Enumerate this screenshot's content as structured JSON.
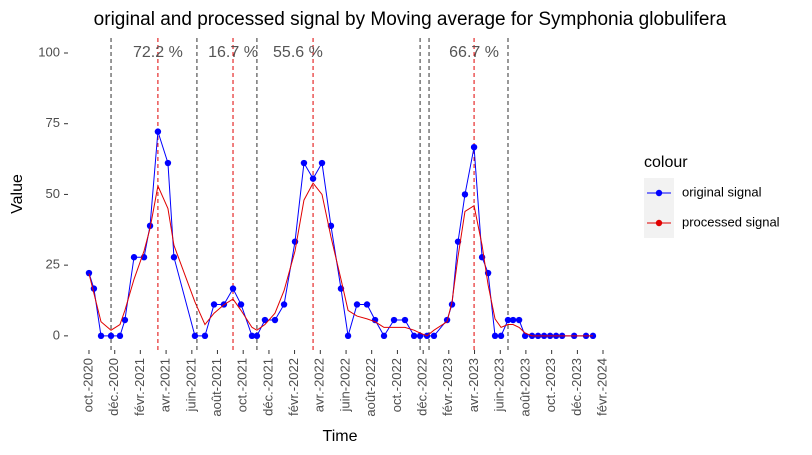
{
  "chart_data": {
    "type": "line",
    "title": "original and processed signal by Moving average for Symphonia globulifera",
    "x_label": "Time",
    "y_label": "Value",
    "legend_title": "colour",
    "x": [
      2020.75,
      2020.782,
      2020.828,
      2020.893,
      2020.951,
      2020.983,
      2021.042,
      2021.107,
      2021.146,
      2021.197,
      2021.262,
      2021.301,
      2021.437,
      2021.502,
      2021.561,
      2021.625,
      2021.684,
      2021.736,
      2021.807,
      2021.839,
      2021.891,
      2021.956,
      2022.015,
      2022.086,
      2022.144,
      2022.203,
      2022.261,
      2022.319,
      2022.384,
      2022.43,
      2022.488,
      2022.553,
      2022.605,
      2022.663,
      2022.728,
      2022.799,
      2022.858,
      2022.897,
      2022.942,
      2022.987,
      2023.072,
      2023.104,
      2023.143,
      2023.188,
      2023.247,
      2023.299,
      2023.338,
      2023.383,
      2023.422,
      2023.467,
      2023.5,
      2023.539,
      2023.578,
      2023.623,
      2023.662,
      2023.701,
      2023.74,
      2023.779,
      2023.818,
      2023.896,
      2023.973,
      2024.018
    ],
    "series": [
      {
        "name": "original signal",
        "color": "#0000ff",
        "markers": true,
        "values": [
          22.2,
          16.7,
          0,
          0,
          0,
          5.6,
          27.8,
          27.8,
          38.9,
          72.2,
          61.1,
          27.8,
          0,
          0,
          11.1,
          11.1,
          16.7,
          11.1,
          0,
          0,
          5.6,
          5.6,
          11.1,
          33.3,
          61.1,
          55.6,
          61.1,
          38.9,
          16.7,
          0,
          11.1,
          11.1,
          5.6,
          0,
          5.6,
          5.6,
          0,
          0,
          0,
          0,
          5.6,
          11.1,
          33.3,
          50,
          66.7,
          27.8,
          22.2,
          0,
          0,
          5.6,
          5.6,
          5.6,
          0,
          0,
          0,
          0,
          0,
          0,
          0,
          0,
          0,
          0
        ]
      },
      {
        "name": "processed signal",
        "color": "#e00000",
        "markers": false,
        "values": [
          22,
          15,
          5,
          2,
          4,
          9,
          20,
          30,
          38,
          53,
          45,
          32,
          12,
          4,
          8,
          11,
          13,
          9,
          3,
          2,
          4,
          8,
          16,
          30,
          48,
          54,
          50,
          35,
          20,
          9,
          7,
          6,
          5,
          3,
          3,
          3,
          2,
          1,
          0,
          2,
          5,
          12,
          28,
          44,
          46,
          32,
          18,
          6,
          3,
          4,
          4,
          3,
          1,
          0,
          0,
          0,
          0,
          0,
          0,
          0,
          0,
          0
        ]
      }
    ],
    "xlim": [
      2020.614,
      2024.096
    ],
    "ylim": [
      -5,
      105.3
    ],
    "yticks": [
      0,
      25,
      50,
      75,
      100
    ],
    "xticks": [
      {
        "value": 2020.75,
        "label": "oct.-2020"
      },
      {
        "value": 2020.917,
        "label": "déc.-2020"
      },
      {
        "value": 2021.083,
        "label": "févr.-2021"
      },
      {
        "value": 2021.25,
        "label": "avr.-2021"
      },
      {
        "value": 2021.417,
        "label": "juin-2021"
      },
      {
        "value": 2021.583,
        "label": "août-2021"
      },
      {
        "value": 2021.75,
        "label": "oct.-2021"
      },
      {
        "value": 2021.917,
        "label": "déc.-2021"
      },
      {
        "value": 2022.083,
        "label": "févr.-2022"
      },
      {
        "value": 2022.25,
        "label": "avr.-2022"
      },
      {
        "value": 2022.417,
        "label": "juin-2022"
      },
      {
        "value": 2022.583,
        "label": "août-2022"
      },
      {
        "value": 2022.75,
        "label": "oct.-2022"
      },
      {
        "value": 2022.917,
        "label": "déc.-2022"
      },
      {
        "value": 2023.083,
        "label": "févr.-2023"
      },
      {
        "value": 2023.25,
        "label": "avr.-2023"
      },
      {
        "value": 2023.417,
        "label": "juin-2023"
      },
      {
        "value": 2023.583,
        "label": "août-2023"
      },
      {
        "value": 2023.75,
        "label": "oct.-2023"
      },
      {
        "value": 2023.917,
        "label": "déc.-2023"
      },
      {
        "value": 2024.083,
        "label": "févr.-2024"
      }
    ],
    "vlines": [
      {
        "x": 2020.893,
        "color": "#333333"
      },
      {
        "x": 2021.45,
        "color": "#333333"
      },
      {
        "x": 2021.839,
        "color": "#333333"
      },
      {
        "x": 2022.897,
        "color": "#333333"
      },
      {
        "x": 2022.955,
        "color": "#333333"
      },
      {
        "x": 2023.467,
        "color": "#333333"
      },
      {
        "x": 2021.197,
        "color": "#e00000"
      },
      {
        "x": 2021.684,
        "color": "#e00000"
      },
      {
        "x": 2022.203,
        "color": "#e00000"
      },
      {
        "x": 2023.247,
        "color": "#e00000"
      }
    ],
    "annotations": [
      {
        "text": "72.2 %",
        "x": 2021.197,
        "y": 100
      },
      {
        "text": "16.7 %",
        "x": 2021.684,
        "y": 100
      },
      {
        "text": "55.6 %",
        "x": 2022.105,
        "y": 100
      },
      {
        "text": "66.7 %",
        "x": 2023.247,
        "y": 100
      }
    ],
    "grid": false
  }
}
